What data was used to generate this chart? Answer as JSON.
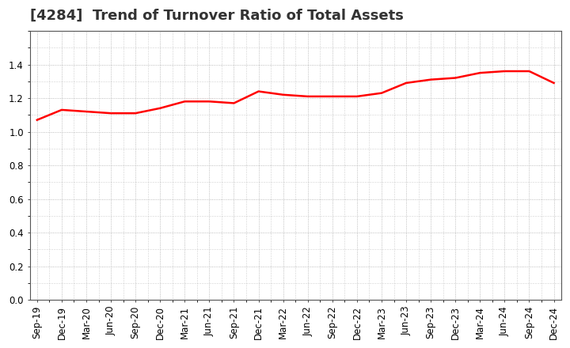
{
  "title": "[4284]  Trend of Turnover Ratio of Total Assets",
  "x_labels": [
    "Sep-19",
    "Dec-19",
    "Mar-20",
    "Jun-20",
    "Sep-20",
    "Dec-20",
    "Mar-21",
    "Jun-21",
    "Sep-21",
    "Dec-21",
    "Mar-22",
    "Jun-22",
    "Sep-22",
    "Dec-22",
    "Mar-23",
    "Jun-23",
    "Sep-23",
    "Dec-23",
    "Mar-24",
    "Jun-24",
    "Sep-24",
    "Dec-24"
  ],
  "y_values": [
    1.07,
    1.13,
    1.12,
    1.11,
    1.11,
    1.14,
    1.18,
    1.18,
    1.17,
    1.24,
    1.22,
    1.21,
    1.21,
    1.21,
    1.23,
    1.29,
    1.31,
    1.32,
    1.35,
    1.36,
    1.36,
    1.29
  ],
  "line_color": "#ff0000",
  "line_width": 1.8,
  "ylim": [
    0.0,
    1.6
  ],
  "yticks": [
    0.0,
    0.2,
    0.4,
    0.6,
    0.8,
    1.0,
    1.2,
    1.4
  ],
  "grid_color": "#aaaaaa",
  "background_color": "#ffffff",
  "title_fontsize": 13,
  "title_color": "#333333",
  "tick_fontsize": 8.5,
  "fig_width": 7.2,
  "fig_height": 4.4,
  "dpi": 100
}
